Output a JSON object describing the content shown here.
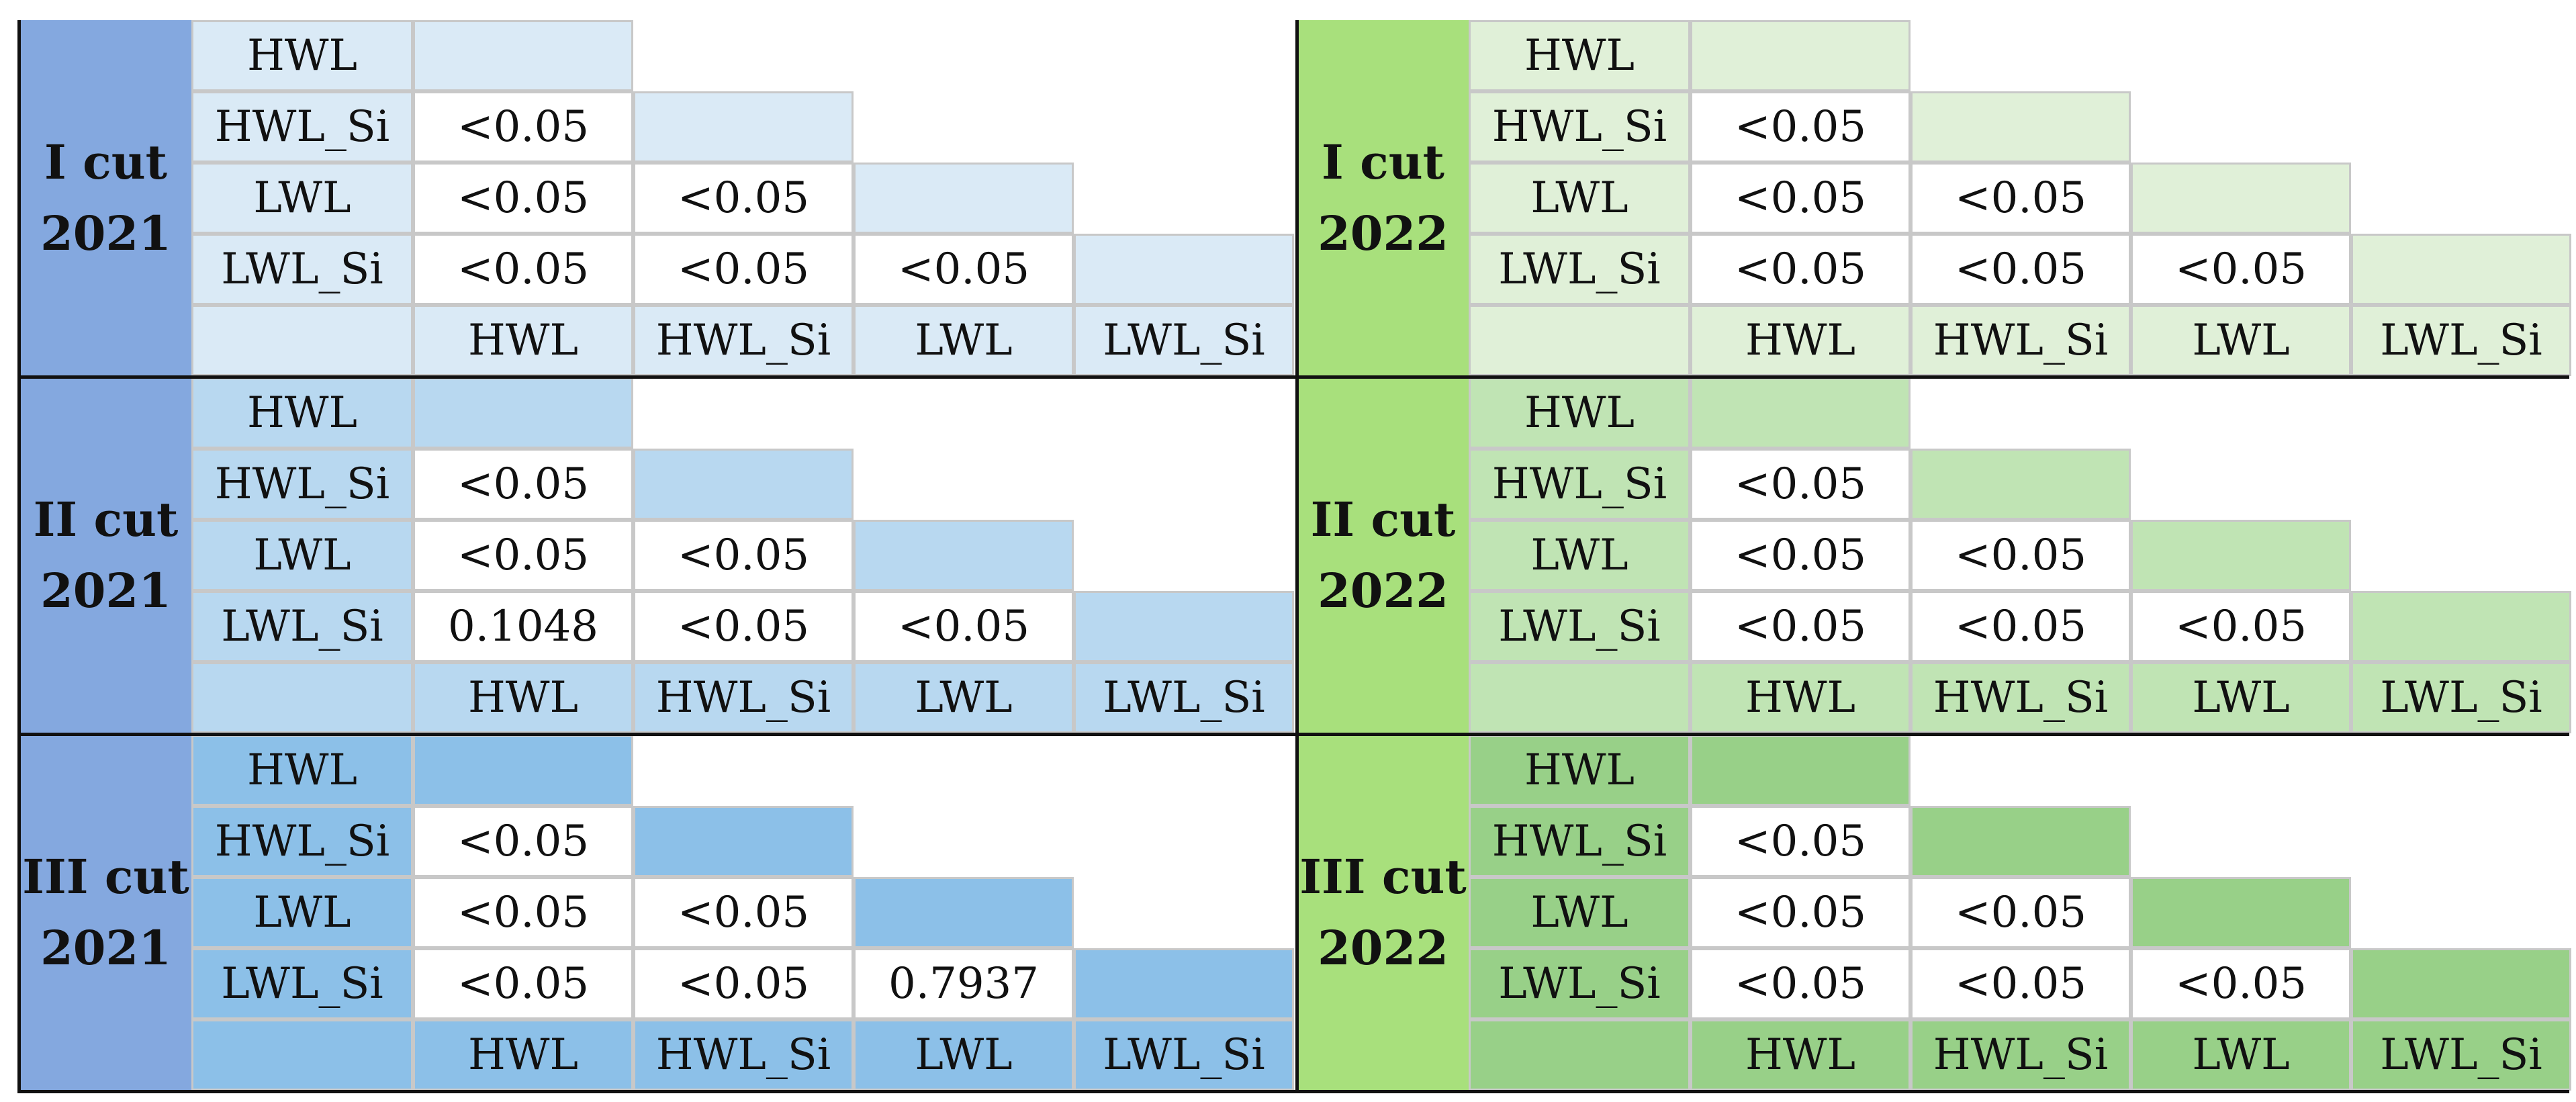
{
  "methods": [
    "HWL",
    "HWL_Si",
    "LWL",
    "LWL_Si"
  ],
  "colors": {
    "blue_label": "#84a8df",
    "green_label": "#a8e07c",
    "blue_light": "#daeaf6",
    "blue_mid": "#b8d8f0",
    "blue_dark": "#8cc0e8",
    "green_light": "#e0f0d8",
    "green_mid": "#c0e4b4",
    "green_dark": "#98d088",
    "white": "#ffffff",
    "grid": "#c8c8c8",
    "rule": "#111111"
  },
  "panels": [
    {
      "cut": "I cut",
      "year": "2021",
      "palette": "blue",
      "shade": "light",
      "values": [
        [
          "<0.05"
        ],
        [
          "<0.05",
          "<0.05"
        ],
        [
          "<0.05",
          "<0.05",
          "<0.05"
        ]
      ]
    },
    {
      "cut": "I cut",
      "year": "2022",
      "palette": "green",
      "shade": "light",
      "values": [
        [
          "<0.05"
        ],
        [
          "<0.05",
          "<0.05"
        ],
        [
          "<0.05",
          "<0.05",
          "<0.05"
        ]
      ]
    },
    {
      "cut": "II cut",
      "year": "2021",
      "palette": "blue",
      "shade": "mid",
      "values": [
        [
          "<0.05"
        ],
        [
          "<0.05",
          "<0.05"
        ],
        [
          "0.1048",
          "<0.05",
          "<0.05"
        ]
      ]
    },
    {
      "cut": "II cut",
      "year": "2022",
      "palette": "green",
      "shade": "mid",
      "values": [
        [
          "<0.05"
        ],
        [
          "<0.05",
          "<0.05"
        ],
        [
          "<0.05",
          "<0.05",
          "<0.05"
        ]
      ]
    },
    {
      "cut": "III cut",
      "year": "2021",
      "palette": "blue",
      "shade": "dark",
      "values": [
        [
          "<0.05"
        ],
        [
          "<0.05",
          "<0.05"
        ],
        [
          "<0.05",
          "<0.05",
          "0.7937"
        ]
      ]
    },
    {
      "cut": "III cut",
      "year": "2022",
      "palette": "green",
      "shade": "dark",
      "values": [
        [
          "<0.05"
        ],
        [
          "<0.05",
          "<0.05"
        ],
        [
          "<0.05",
          "<0.05",
          "<0.05"
        ]
      ]
    }
  ]
}
